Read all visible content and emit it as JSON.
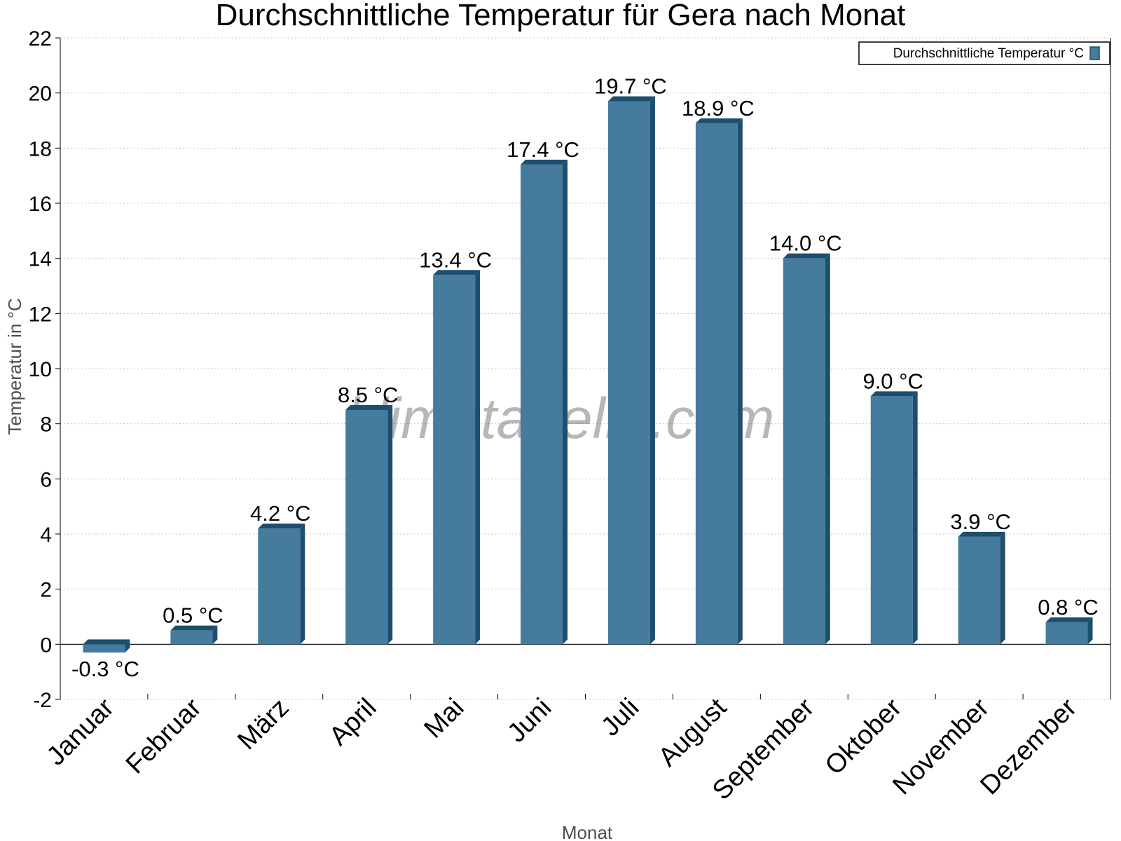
{
  "chart_data": {
    "type": "bar",
    "title": "Durchschnittliche Temperatur für Gera nach Monat",
    "xlabel": "Monat",
    "ylabel": "Temperatur in °C",
    "ylim": [
      -2,
      22
    ],
    "yticks": [
      -2,
      0,
      2,
      4,
      6,
      8,
      10,
      12,
      14,
      16,
      18,
      20,
      22
    ],
    "grid": true,
    "legend_position": "top-right",
    "categories": [
      "Januar",
      "Februar",
      "März",
      "April",
      "Mai",
      "Juni",
      "Juli",
      "August",
      "September",
      "Oktober",
      "November",
      "Dezember"
    ],
    "series": [
      {
        "name": "Durchschnittliche Temperatur °C",
        "values": [
          -0.3,
          0.5,
          4.2,
          8.5,
          13.4,
          17.4,
          19.7,
          18.9,
          14.0,
          9.0,
          3.9,
          0.8
        ],
        "labels": [
          "-0.3 °C",
          "0.5 °C",
          "4.2 °C",
          "8.5 °C",
          "13.4 °C",
          "17.4 °C",
          "19.7 °C",
          "18.9 °C",
          "14.0 °C",
          "9.0 °C",
          "3.9 °C",
          "0.8 °C"
        ],
        "color": "#457b9d",
        "shade_color": "#1d4e6e"
      }
    ],
    "watermark": "klimatabelle.com"
  }
}
